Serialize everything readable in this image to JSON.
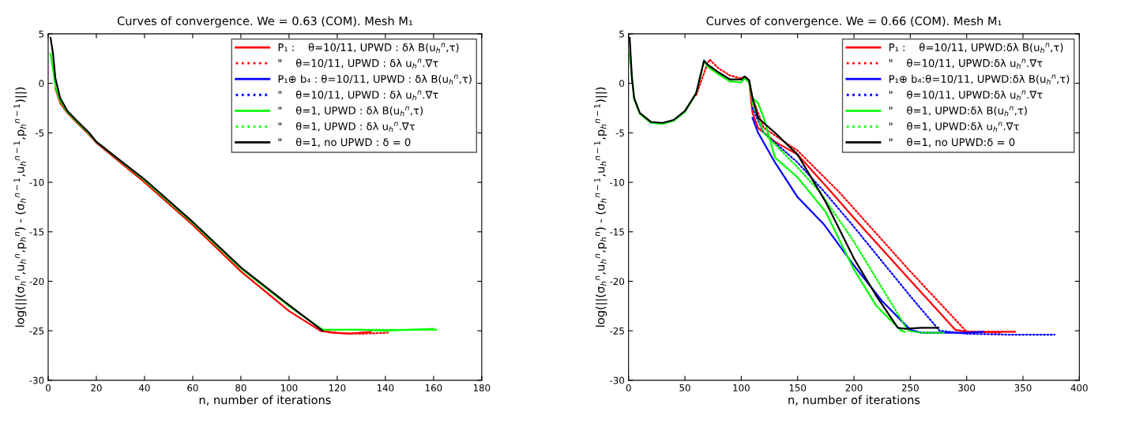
{
  "chart_data": [
    {
      "type": "line",
      "title": "Curves of convergence. We = 0.63 (COM). Mesh M₁",
      "xlabel": "n, number of iterations",
      "ylabel": "log(||(σ$_{h}$$^{n}$,u$_{h}$$^{n}$,p$_{h}$$^{n}$) - (σ$_{h}$$^{n−1}$,u$_{h}$$^{n−1}$,p$_{h}$$^{n−1}$)||)",
      "xlim": [
        0,
        180
      ],
      "ylim": [
        -30,
        5
      ],
      "xticks": [
        0,
        20,
        40,
        60,
        80,
        100,
        120,
        140,
        160,
        180
      ],
      "yticks": [
        -30,
        -25,
        -20,
        -15,
        -10,
        -5,
        0,
        5
      ],
      "grid": false,
      "legend": "top right",
      "series": [
        {
          "name": "P₁ :    θ=10/11, UPWD : δλ B(u$_{h}$$^{n}$,τ)",
          "color": "#ff0000",
          "line_style": "solid",
          "x": [
            3,
            5,
            8,
            12,
            17,
            20,
            40,
            60,
            80,
            100,
            113,
            118,
            125,
            134
          ],
          "values": [
            -0.5,
            -2,
            -3,
            -4,
            -5.2,
            -6,
            -10,
            -14.3,
            -19,
            -23,
            -25,
            -25.2,
            -25.3,
            -25.1
          ]
        },
        {
          "name": "\"    θ=10/11, UPWD : δλ u$_{h}$$^{n}$.∇τ",
          "color": "#ff0000",
          "line_style": "dotted",
          "x": [
            113,
            120,
            130,
            141
          ],
          "values": [
            -25,
            -25.2,
            -25.3,
            -25.2
          ]
        },
        {
          "name": "P₁⊕ b₄ : θ=10/11, UPWD : δλ B(u$_{h}$$^{n}$,τ)",
          "color": "#0000ff",
          "line_style": "solid"
        },
        {
          "name": "\"    θ=10/11, UPWD : δλ u$_{h}$$^{n}$.∇τ",
          "color": "#0000ff",
          "line_style": "dotted"
        },
        {
          "name": "\"    θ=1, UPWD : δλ B(u$_{h}$$^{n}$,τ)",
          "color": "#00ff00",
          "line_style": "solid",
          "x": [
            1,
            2,
            3,
            5,
            8,
            12,
            17,
            20,
            40,
            60,
            80,
            100,
            114,
            120,
            130,
            140,
            150,
            160
          ],
          "values": [
            3,
            1.5,
            -0.3,
            -1.8,
            -2.9,
            -3.9,
            -5.1,
            -5.9,
            -9.8,
            -14.1,
            -18.7,
            -22.5,
            -24.9,
            -24.9,
            -24.9,
            -25,
            -24.9,
            -24.8
          ]
        },
        {
          "name": "\"    θ=1, UPWD : δλ u$_{h}$$^{n}$.∇τ",
          "color": "#00ff00",
          "line_style": "dotted",
          "x": [
            114,
            130,
            150,
            162
          ],
          "values": [
            -24.9,
            -24.9,
            -24.9,
            -24.9
          ]
        },
        {
          "name": "\"    θ=1, no UPWD : δ = 0",
          "color": "#000000",
          "line_style": "solid",
          "x": [
            1,
            2,
            3,
            5,
            8,
            12,
            17,
            20,
            40,
            60,
            80,
            100,
            114
          ],
          "values": [
            4.6,
            3,
            0.5,
            -1.5,
            -2.8,
            -3.8,
            -5,
            -5.9,
            -9.7,
            -14,
            -18.6,
            -22.4,
            -25
          ]
        }
      ]
    },
    {
      "type": "line",
      "title": "Curves of convergence. We = 0.66 (COM). Mesh M₁",
      "xlabel": "n, number of iterations",
      "ylabel": "log(||(σ$_{h}$$^{n}$,u$_{h}$$^{n}$,p$_{h}$$^{n}$) - (σ$_{h}$$^{n−1}$,u$_{h}$$^{n−1}$,p$_{h}$$^{n−1}$)||)",
      "xlim": [
        0,
        400
      ],
      "ylim": [
        -30,
        5
      ],
      "xticks": [
        0,
        50,
        100,
        150,
        200,
        250,
        300,
        350,
        400
      ],
      "yticks": [
        -30,
        -25,
        -20,
        -15,
        -10,
        -5,
        0,
        5
      ],
      "grid": false,
      "legend": "top right",
      "series": [
        {
          "name": "P₁ :    θ=10/11, UPWD:δλ B(u$_{h}$$^{n}$,τ)",
          "color": "#ff0000",
          "line_style": "solid",
          "x": [
            107,
            110,
            115,
            130,
            150,
            180,
            200,
            250,
            290,
            300,
            320,
            343
          ],
          "values": [
            0.2,
            -3,
            -4.5,
            -5.9,
            -7.2,
            -11,
            -13.6,
            -19.9,
            -24.9,
            -25.1,
            -25.1,
            -25.1
          ]
        },
        {
          "name": "\"    θ=10/11, UPWD:δλ u$_{h}$$^{n}$.∇τ",
          "color": "#ff0000",
          "line_style": "dotted",
          "x": [
            60,
            70,
            72,
            80,
            90,
            100,
            103,
            107,
            110,
            120,
            150,
            187,
            250,
            300,
            330
          ],
          "values": [
            -1.2,
            2,
            2.4,
            1.5,
            0.8,
            0.5,
            0.7,
            0.3,
            -1.5,
            -4.5,
            -6.8,
            -11,
            -19,
            -25.1,
            -25.2
          ]
        },
        {
          "name": "P₁⊕ b₄:θ=10/11, UPWD:δλ B(u$_{h}$$^{n}$,τ)",
          "color": "#0000ff",
          "line_style": "solid",
          "x": [
            110,
            115,
            130,
            150,
            173,
            200,
            225,
            250,
            260,
            300,
            315
          ],
          "values": [
            -3.5,
            -5,
            -8,
            -11.5,
            -14.2,
            -18.4,
            -22,
            -24.9,
            -25.2,
            -25.2,
            -25.1
          ]
        },
        {
          "name": "\"    θ=10/11, UPWD:δλ u$_{h}$$^{n}$.∇τ",
          "color": "#0000ff",
          "line_style": "dotted",
          "x": [
            110,
            120,
            150,
            174,
            200,
            250,
            276,
            300,
            340,
            378
          ],
          "values": [
            -2.5,
            -5,
            -8,
            -11,
            -14.5,
            -21.5,
            -25,
            -25.3,
            -25.4,
            -25.4
          ]
        },
        {
          "name": "\"    θ=1, UPWD:δλ B(u$_{h}$$^{n}$,τ)",
          "color": "#00ff00",
          "line_style": "solid",
          "x": [
            1,
            5,
            10,
            20,
            30,
            40,
            50,
            60,
            67,
            70,
            80,
            90,
            100,
            103,
            107,
            110,
            115,
            120,
            130,
            150,
            175,
            200,
            220,
            242,
            245
          ],
          "values": [
            3,
            -1.6,
            -3.1,
            -4,
            -4.1,
            -3.8,
            -2.9,
            -1,
            2.3,
            1.7,
            0.9,
            0.2,
            0.1,
            0.5,
            0.1,
            -1.5,
            -2,
            -3.5,
            -7.5,
            -9.5,
            -13,
            -18.8,
            -22.5,
            -25,
            -25.1
          ]
        },
        {
          "name": "\"    θ=1, UPWD:δλ u$_{h}$$^{n}$.∇τ",
          "color": "#00ff00",
          "line_style": "dotted",
          "x": [
            107,
            110,
            120,
            150,
            170,
            200,
            248,
            260,
            280
          ],
          "values": [
            0.1,
            -2,
            -5,
            -8.5,
            -11,
            -16,
            -25,
            -25.2,
            -25.2
          ]
        },
        {
          "name": "\"    θ=1, no UPWD:δ = 0",
          "color": "#000000",
          "line_style": "solid",
          "x": [
            1,
            3,
            5,
            10,
            20,
            30,
            40,
            50,
            60,
            67,
            70,
            80,
            90,
            100,
            103,
            107,
            110,
            115,
            130,
            150,
            175,
            200,
            220,
            239,
            245,
            260,
            275
          ],
          "values": [
            4.6,
            0.5,
            -1.5,
            -3,
            -3.9,
            -4,
            -3.7,
            -2.8,
            -1,
            2.3,
            1.9,
            1.1,
            0.4,
            0.4,
            0.7,
            0.3,
            -1.5,
            -3.5,
            -5,
            -7.2,
            -12,
            -17.7,
            -21.5,
            -24.7,
            -24.8,
            -24.7,
            -24.7
          ]
        }
      ]
    }
  ]
}
